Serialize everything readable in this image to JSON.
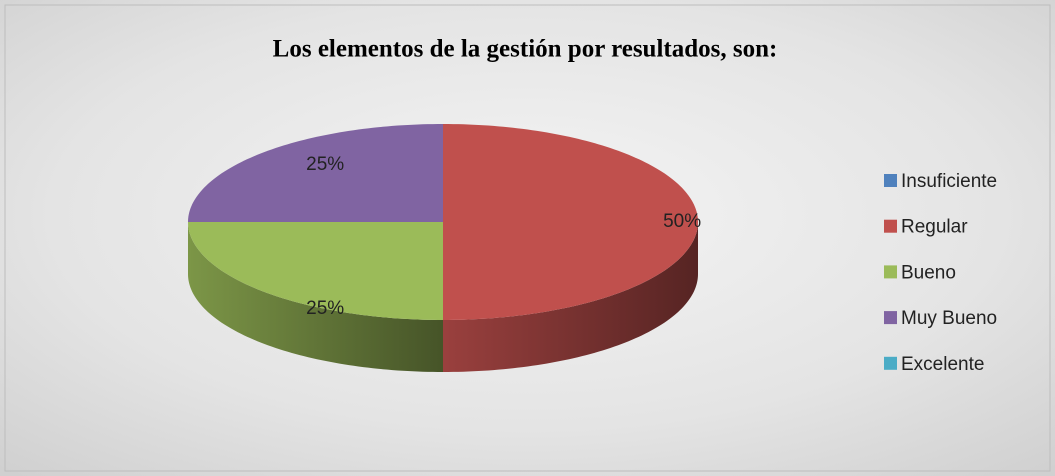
{
  "chart_data": {
    "type": "pie",
    "title": "Los elementos de la gestión por resultados, son:",
    "categories": [
      "Insuficiente",
      "Regular",
      "Bueno",
      "Muy Bueno",
      "Excelente"
    ],
    "values": [
      0,
      50,
      25,
      25,
      0
    ],
    "value_labels": [
      null,
      "50%",
      "25%",
      "25%",
      null
    ],
    "colors": [
      "#4f81bd",
      "#c0504d",
      "#9bbb59",
      "#8064a2",
      "#4bacc6"
    ],
    "legend": "right"
  }
}
